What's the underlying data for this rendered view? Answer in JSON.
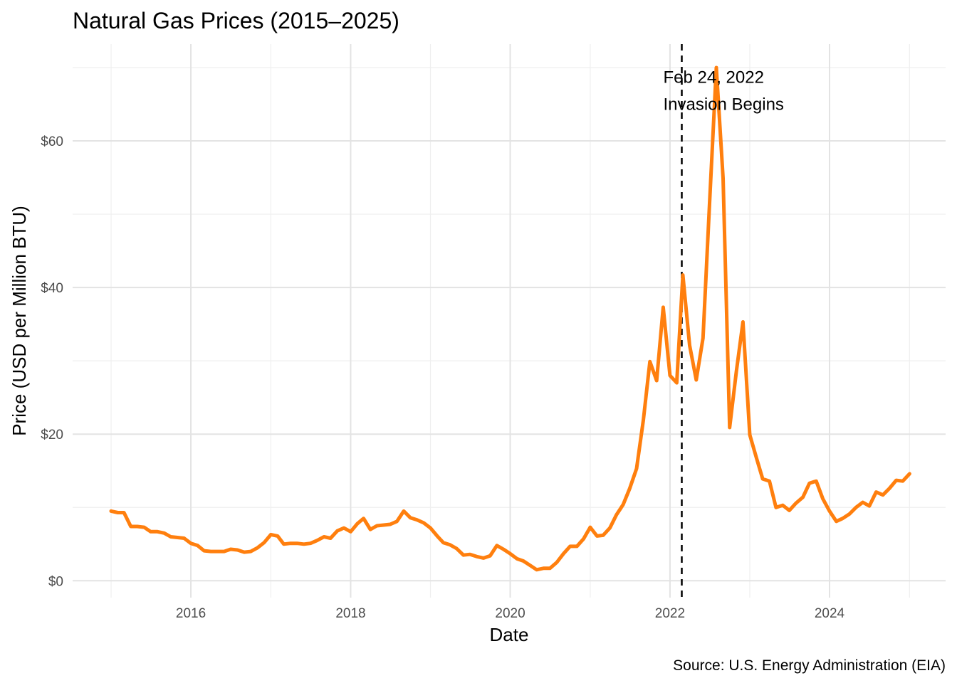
{
  "chart_data": {
    "type": "line",
    "title": "Natural Gas Prices (2015–2025)",
    "xlabel": "Date",
    "ylabel": "Price (USD per Million BTU)",
    "caption": "Source: U.S. Energy Administration (EIA)",
    "x_ticks": [
      "2016",
      "2018",
      "2020",
      "2022",
      "2024"
    ],
    "y_ticks": [
      "$0",
      "$20",
      "$40",
      "$60"
    ],
    "y_tick_values": [
      0,
      20,
      40,
      60
    ],
    "x_tick_dates": [
      "2016-01-01",
      "2018-01-01",
      "2020-01-01",
      "2022-01-01",
      "2024-01-01"
    ],
    "xlim": [
      "2014-07-09",
      "2025-06-15"
    ],
    "ylim": [
      -2.3,
      73.2
    ],
    "grid": true,
    "line_color": "#ff7f0e",
    "series": [
      {
        "x": [
          "2015-01-01",
          "2015-02-01",
          "2015-03-01",
          "2015-04-01",
          "2015-05-01",
          "2015-06-01",
          "2015-07-01",
          "2015-08-01",
          "2015-09-01",
          "2015-10-01",
          "2015-11-01",
          "2015-12-01",
          "2016-01-01",
          "2016-02-01",
          "2016-03-01",
          "2016-04-01",
          "2016-05-01",
          "2016-06-01",
          "2016-07-01",
          "2016-08-01",
          "2016-09-01",
          "2016-10-01",
          "2016-11-01",
          "2016-12-01",
          "2017-01-01",
          "2017-02-01",
          "2017-03-01",
          "2017-04-01",
          "2017-05-01",
          "2017-06-01",
          "2017-07-01",
          "2017-08-01",
          "2017-09-01",
          "2017-10-01",
          "2017-11-01",
          "2017-12-01",
          "2018-01-01",
          "2018-02-01",
          "2018-03-01",
          "2018-04-01",
          "2018-05-01",
          "2018-06-01",
          "2018-07-01",
          "2018-08-01",
          "2018-09-01",
          "2018-10-01",
          "2018-11-01",
          "2018-12-01",
          "2019-01-01",
          "2019-02-01",
          "2019-03-01",
          "2019-04-01",
          "2019-05-01",
          "2019-06-01",
          "2019-07-01",
          "2019-08-01",
          "2019-09-01",
          "2019-10-01",
          "2019-11-01",
          "2019-12-01",
          "2020-01-01",
          "2020-02-01",
          "2020-03-01",
          "2020-04-01",
          "2020-05-01",
          "2020-06-01",
          "2020-07-01",
          "2020-08-01",
          "2020-09-01",
          "2020-10-01",
          "2020-11-01",
          "2020-12-01",
          "2021-01-01",
          "2021-02-01",
          "2021-03-01",
          "2021-04-01",
          "2021-05-01",
          "2021-06-01",
          "2021-07-01",
          "2021-08-01",
          "2021-09-01",
          "2021-10-01",
          "2021-11-01",
          "2021-12-01",
          "2022-01-01",
          "2022-02-01",
          "2022-03-01",
          "2022-04-01",
          "2022-05-01",
          "2022-06-01",
          "2022-07-01",
          "2022-08-01",
          "2022-09-01",
          "2022-10-01",
          "2022-11-01",
          "2022-12-01",
          "2023-01-01",
          "2023-02-01",
          "2023-03-01",
          "2023-04-01",
          "2023-05-01",
          "2023-06-01",
          "2023-07-01",
          "2023-08-01",
          "2023-09-01",
          "2023-10-01",
          "2023-11-01",
          "2023-12-01",
          "2024-01-01",
          "2024-02-01",
          "2024-03-01",
          "2024-04-01",
          "2024-05-01",
          "2024-06-01",
          "2024-07-01",
          "2024-08-01",
          "2024-09-01",
          "2024-10-01",
          "2024-11-01",
          "2024-12-01",
          "2025-01-01"
        ],
        "y": [
          9.5,
          9.3,
          9.3,
          7.4,
          7.4,
          7.3,
          6.7,
          6.7,
          6.5,
          6.0,
          5.9,
          5.8,
          5.1,
          4.8,
          4.1,
          4.0,
          4.0,
          4.0,
          4.3,
          4.2,
          3.9,
          4.0,
          4.5,
          5.2,
          6.3,
          6.1,
          5.0,
          5.1,
          5.1,
          5.0,
          5.1,
          5.5,
          6.0,
          5.8,
          6.8,
          7.2,
          6.7,
          7.8,
          8.5,
          7.0,
          7.5,
          7.6,
          7.7,
          8.1,
          9.5,
          8.6,
          8.3,
          7.9,
          7.2,
          6.1,
          5.2,
          4.9,
          4.4,
          3.5,
          3.6,
          3.3,
          3.1,
          3.4,
          4.8,
          4.3,
          3.7,
          3.0,
          2.7,
          2.1,
          1.5,
          1.7,
          1.7,
          2.5,
          3.7,
          4.7,
          4.7,
          5.7,
          7.3,
          6.1,
          6.2,
          7.2,
          9.0,
          10.4,
          12.6,
          15.3,
          21.9,
          29.9,
          27.3,
          37.3,
          28.0,
          27.0,
          41.7,
          32.1,
          27.4,
          33.1,
          51.5,
          70.0,
          54.9,
          20.9,
          28.6,
          35.3,
          19.9,
          16.7,
          13.9,
          13.6,
          10.0,
          10.3,
          9.6,
          10.6,
          11.4,
          13.3,
          13.6,
          11.2,
          9.5,
          8.1,
          8.5,
          9.1,
          10.0,
          10.7,
          10.2,
          12.1,
          11.7,
          12.6,
          13.7,
          13.6,
          14.6
        ]
      }
    ],
    "annotation": {
      "date": "2022-02-24",
      "line1": "Feb 24, 2022",
      "line2": "Invasion Begins"
    }
  }
}
